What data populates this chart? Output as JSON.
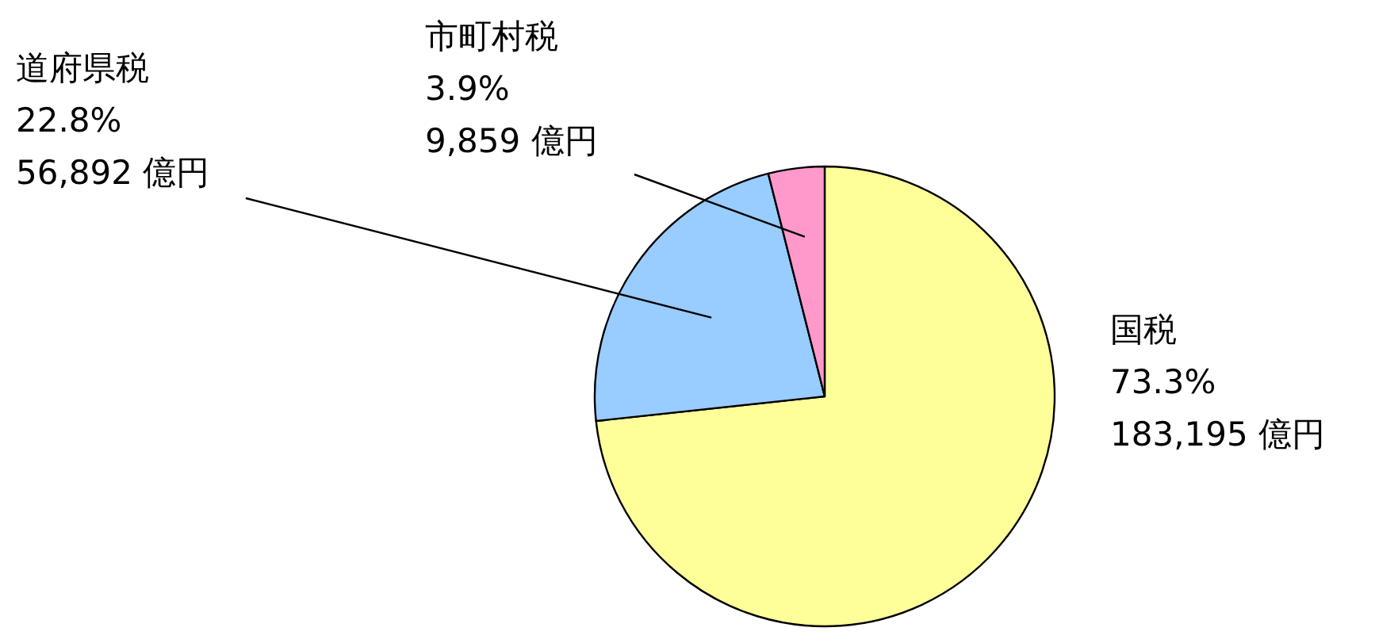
{
  "chart_data": {
    "type": "pie",
    "categories": [
      "国税",
      "道府県税",
      "市町村税"
    ],
    "values": [
      183195,
      56892,
      9859
    ],
    "colors": [
      "#ffff99",
      "#99ccff",
      "#ff99cc"
    ],
    "value_labels": [
      "73.3%\n183,195 億円",
      "22.8%\n56,892 億円",
      "3.9%\n9,859 億円"
    ]
  }
}
